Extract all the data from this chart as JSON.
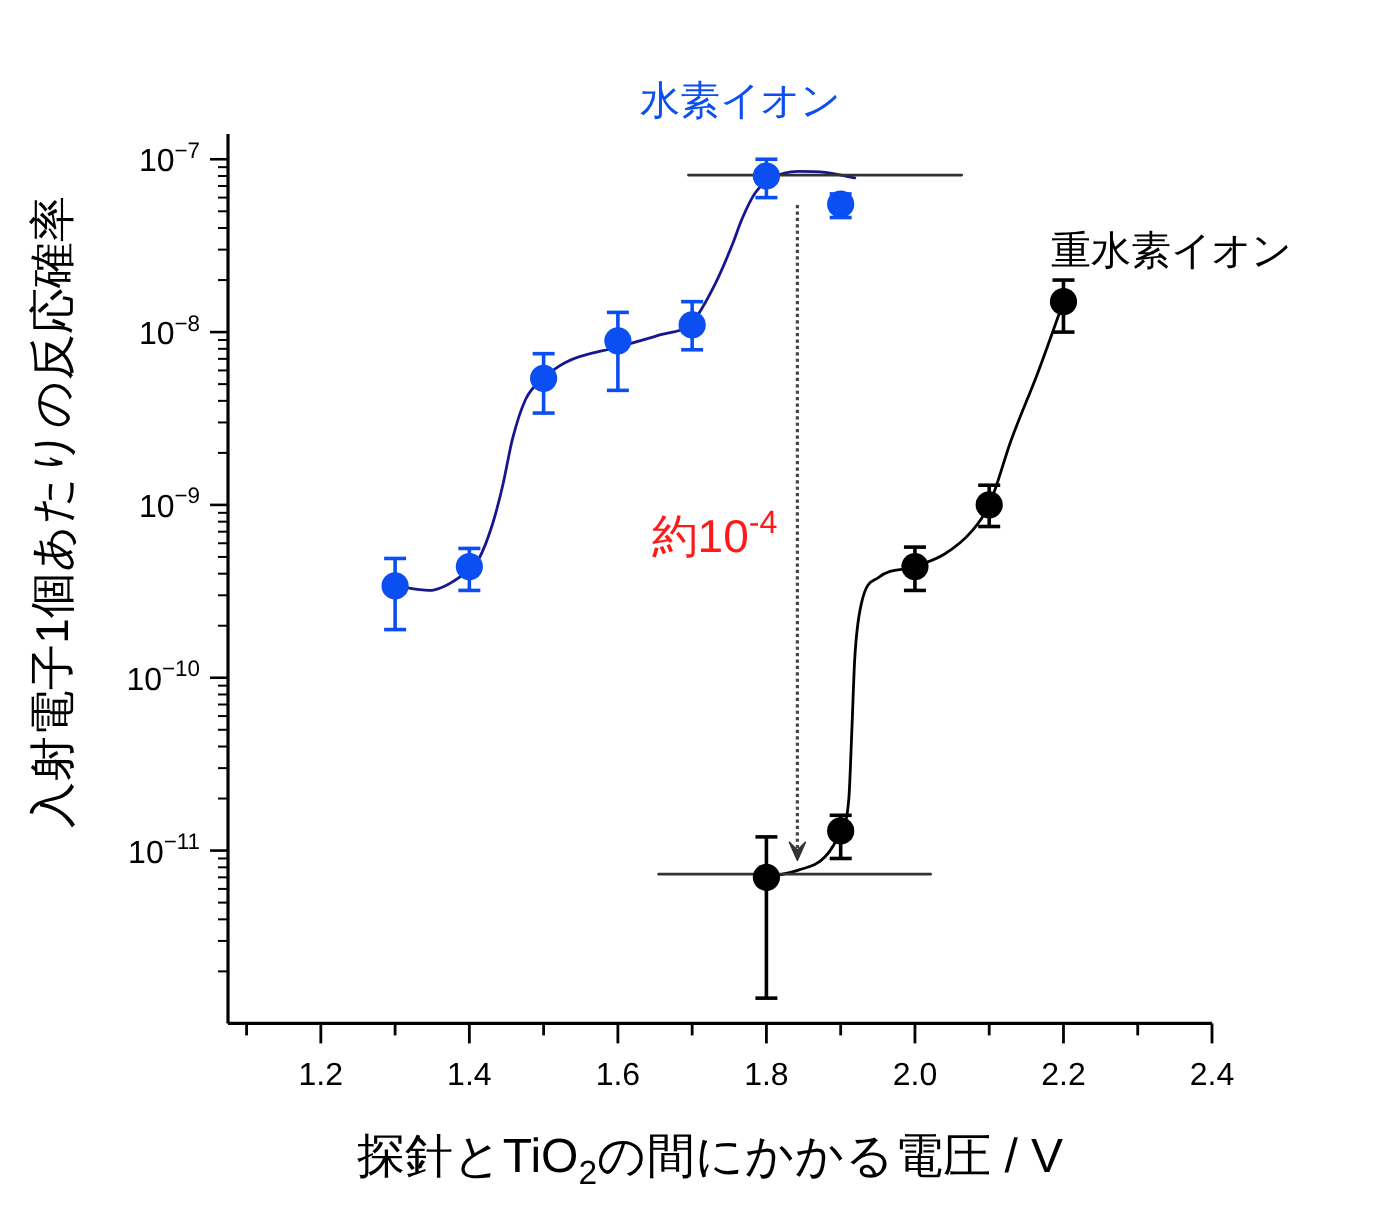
{
  "chart_data": {
    "type": "scatter",
    "xlabel": "探針とTiO$_{2}$の間にかかる電圧 / V",
    "ylabel": "入射電子1個あたりの反応確率",
    "log": "y",
    "xlim": [
      1.075,
      2.4
    ],
    "ylim": [
      1e-12,
      1.4e-07
    ],
    "xticks": [
      {
        "value": 1.1,
        "label": null
      },
      {
        "value": 1.2,
        "label": "1.2"
      },
      {
        "value": 1.3,
        "label": null
      },
      {
        "value": 1.4,
        "label": "1.4"
      },
      {
        "value": 1.5,
        "label": null
      },
      {
        "value": 1.6,
        "label": "1.6"
      },
      {
        "value": 1.7,
        "label": null
      },
      {
        "value": 1.8,
        "label": "1.8"
      },
      {
        "value": 1.9,
        "label": null
      },
      {
        "value": 2.0,
        "label": "2.0"
      },
      {
        "value": 2.1,
        "label": null
      },
      {
        "value": 2.2,
        "label": "2.2"
      },
      {
        "value": 2.3,
        "label": null
      },
      {
        "value": 2.4,
        "label": "2.4"
      }
    ],
    "yticks": [
      {
        "value": 1e-11,
        "label": "10$^{−11}$"
      },
      {
        "value": 1e-10,
        "label": "10$^{−10}$"
      },
      {
        "value": 1e-09,
        "label": "10$^{−9}$"
      },
      {
        "value": 1e-08,
        "label": "10$^{−8}$"
      },
      {
        "value": 1e-07,
        "label": "10$^{−7}$"
      }
    ],
    "annotations": [
      "約10$^{-4}$"
    ],
    "series": [
      {
        "name": "水素イオン",
        "marker": "circle",
        "color": "#0b4ff2",
        "x": [
          1.3,
          1.4,
          1.5,
          1.6,
          1.7,
          1.8,
          1.9
        ],
        "values": [
          3.4e-10,
          4.4e-10,
          5.4e-09,
          8.9e-09,
          1.1e-08,
          8e-08,
          5.5e-08
        ],
        "errors": [
          [
            1.9e-10,
            4.9e-10
          ],
          [
            3.2e-10,
            5.6e-10
          ],
          [
            3.4e-09,
            7.5e-09
          ],
          [
            4.6e-09,
            1.3e-08
          ],
          [
            7.9e-09,
            1.5e-08
          ],
          [
            6e-08,
            1e-07
          ],
          [
            4.6e-08,
            6.3e-08
          ]
        ]
      },
      {
        "name": "重水素イオン",
        "marker": "circle",
        "color": "#000000",
        "x": [
          1.8,
          1.9,
          2.0,
          2.1,
          2.2
        ],
        "values": [
          7e-12,
          1.3e-11,
          4.4e-10,
          1e-09,
          1.5e-08
        ],
        "errors": [
          [
            1.4e-12,
            1.2e-11
          ],
          [
            9e-12,
            1.6e-11
          ],
          [
            3.2e-10,
            5.7e-10
          ],
          [
            7.5e-10,
            1.3e-09
          ],
          [
            1e-08,
            2e-08
          ]
        ]
      },
      {
        "type": "line",
        "color": "#16168f",
        "x": [
          1.3,
          1.346,
          1.386,
          1.413,
          1.431,
          1.445,
          1.458,
          1.476,
          1.5,
          1.53,
          1.6,
          1.655,
          1.7,
          1.731,
          1.754,
          1.767,
          1.785,
          1.808,
          1.843,
          1.879,
          1.919
        ],
        "values": [
          3.4e-10,
          3.2e-10,
          3.8e-10,
          4.9e-10,
          7.7e-10,
          1.3e-09,
          2.4e-09,
          4.1e-09,
          5.4e-09,
          6.7e-09,
          8.2e-09,
          9.6e-09,
          1.14e-08,
          1.9e-08,
          3.2e-08,
          4.5e-08,
          6.4e-08,
          7.8e-08,
          8.5e-08,
          8.4e-08,
          7.8e-08
        ]
      },
      {
        "type": "line",
        "color": "#000000",
        "x": [
          1.8,
          1.843,
          1.879,
          1.9,
          1.911,
          1.915,
          1.919,
          1.928,
          1.951,
          2.0,
          2.04,
          2.076,
          2.1,
          2.13,
          2.166,
          2.2
        ],
        "values": [
          7e-12,
          7.7e-12,
          9.2e-12,
          1.3e-11,
          2e-11,
          4.9e-11,
          1.3e-10,
          2.7e-10,
          3.8e-10,
          4.4e-10,
          5.2e-10,
          7e-10,
          1e-09,
          2.4e-09,
          5.9e-09,
          1.5e-08
        ]
      },
      {
        "type": "line",
        "color": "#333333",
        "x": [
          1.695,
          2.063
        ],
        "values": [
          8.1e-08,
          8.1e-08
        ]
      },
      {
        "type": "line",
        "color": "#333333",
        "x": [
          1.655,
          2.021
        ],
        "values": [
          7.3e-12,
          7.3e-12
        ]
      }
    ]
  }
}
